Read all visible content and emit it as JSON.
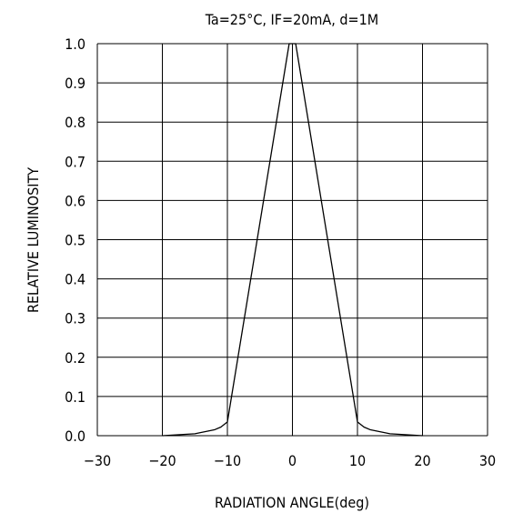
{
  "chart_data": {
    "type": "line",
    "title": "Ta=25°C, IF=20mA, d=1M",
    "xlabel": "RADIATION ANGLE(deg)",
    "ylabel": "RELATIVE LUMINOSITY",
    "xlim": [
      -30,
      30
    ],
    "ylim": [
      0.0,
      1.0
    ],
    "x_ticks": [
      -30,
      -20,
      -10,
      0,
      10,
      20,
      30
    ],
    "y_ticks": [
      0.0,
      0.1,
      0.2,
      0.3,
      0.4,
      0.5,
      0.6,
      0.7,
      0.8,
      0.9,
      1.0
    ],
    "x_tick_labels": [
      "−30",
      "−20",
      "−10",
      "0",
      "10",
      "20",
      "30"
    ],
    "y_tick_labels": [
      "0.0",
      "0.1",
      "0.2",
      "0.3",
      "0.4",
      "0.5",
      "0.6",
      "0.7",
      "0.8",
      "0.9",
      "1.0"
    ],
    "grid": true,
    "series": [
      {
        "line_color": "#000000",
        "x": [
          -20,
          -15,
          -12,
          -11,
          -10,
          -0.5,
          0,
          0.5,
          10,
          11,
          12,
          15,
          20
        ],
        "y": [
          0.0,
          0.005,
          0.015,
          0.022,
          0.035,
          1.0,
          1.0,
          1.0,
          0.035,
          0.022,
          0.015,
          0.005,
          0.0
        ]
      }
    ]
  }
}
